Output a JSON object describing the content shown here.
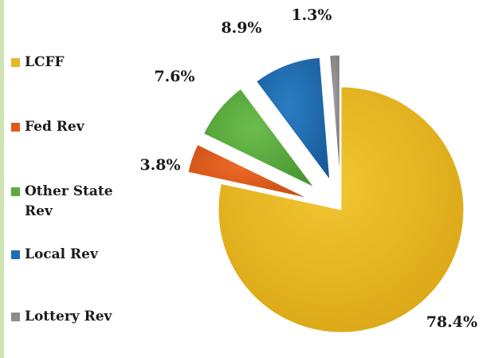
{
  "chart_data": {
    "type": "pie",
    "title": "",
    "legend_position": "left",
    "exploded": true,
    "categories": [
      "LCFF",
      "Fed Rev",
      "Other State Rev",
      "Local Rev",
      "Lottery Rev"
    ],
    "values": [
      78.4,
      3.8,
      7.6,
      8.9,
      1.3
    ],
    "data_labels": [
      "78.4%",
      "3.8%",
      "7.6%",
      "8.9%",
      "1.3%"
    ],
    "colors": [
      "#e8b822",
      "#e05a1c",
      "#5aac3e",
      "#1f6db3",
      "#8c8c8c"
    ]
  }
}
